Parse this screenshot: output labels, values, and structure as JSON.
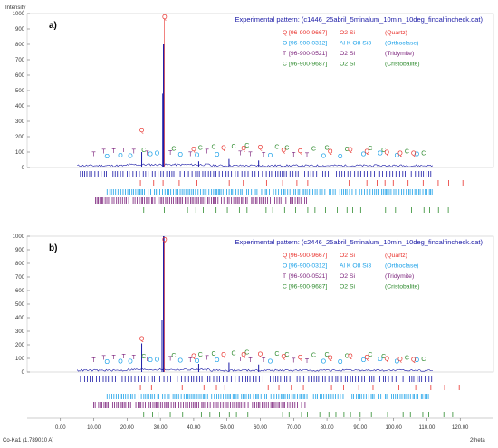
{
  "chart_data": {
    "type": "line",
    "ylabel": "Intensity",
    "xlabel": "2theta",
    "footer": "Co-Ka1 (1.789010 A)",
    "xlim": [
      -10,
      130
    ],
    "ylim": [
      0,
      1000
    ],
    "x_ticks": [
      "0.00",
      "10.00",
      "20.00",
      "30.00",
      "40.00",
      "50.00",
      "60.00",
      "70.00",
      "80.00",
      "90.00",
      "100.00",
      "110.00",
      "120.00"
    ],
    "x_tick_values": [
      0,
      10,
      20,
      30,
      40,
      50,
      60,
      70,
      80,
      90,
      100,
      110,
      120
    ],
    "y_ticks": [
      "0",
      "100",
      "200",
      "300",
      "400",
      "500",
      "600",
      "700",
      "800",
      "900",
      "1000"
    ],
    "y_tick_values": [
      0,
      100,
      200,
      300,
      400,
      500,
      600,
      700,
      800,
      900,
      1000
    ],
    "colors": {
      "quartz": "#e8312c",
      "orthoclase": "#1aa0e8",
      "tridymite": "#7a1f7a",
      "cristobalite": "#2e8b2e",
      "pattern": "#1a1aa6"
    },
    "panels": [
      {
        "label": "a)",
        "pattern_title": "Experimental pattern: (c1446_25abril_5minalum_10min_10deg_fincalfincheck.dat)",
        "main_peak": {
          "x": 31.0,
          "y": 800
        },
        "secondary_peaks": [
          {
            "x": 30.7,
            "y": 480
          },
          {
            "x": 24.4,
            "y": 100
          },
          {
            "x": 50.6,
            "y": 55
          },
          {
            "x": 59.5,
            "y": 45
          },
          {
            "x": 41.5,
            "y": 40
          }
        ],
        "legend": [
          {
            "marker": "Q",
            "code": "[96-900-9667]",
            "formula": "O2 Si",
            "phase": "(Quartz)",
            "color": "#e8312c"
          },
          {
            "marker": "O",
            "code": "[96-900-0312]",
            "formula": "Al K O8 Si3",
            "phase": "(Orthoclase)",
            "color": "#1aa0e8"
          },
          {
            "marker": "T",
            "code": "[96-900-0521]",
            "formula": "O2 Si",
            "phase": "(Tridymite)",
            "color": "#7a1f7a"
          },
          {
            "marker": "C",
            "code": "[96-900-9687]",
            "formula": "O2 Si",
            "phase": "(Cristobalite)",
            "color": "#2e8b2e"
          }
        ]
      },
      {
        "label": "b)",
        "pattern_title": "Experimental pattern: (c2446_25abril_5minalum_10min_10deg_fincalfincheck.dat)",
        "main_peak": {
          "x": 31.0,
          "y": 1000
        },
        "secondary_peaks": [
          {
            "x": 24.4,
            "y": 210
          },
          {
            "x": 30.5,
            "y": 380
          },
          {
            "x": 41.5,
            "y": 60
          },
          {
            "x": 50.6,
            "y": 70
          },
          {
            "x": 59.5,
            "y": 55
          }
        ],
        "legend": [
          {
            "marker": "Q",
            "code": "[96-900-9667]",
            "formula": "O2 Si",
            "phase": "(Quartz)",
            "color": "#e8312c"
          },
          {
            "marker": "O",
            "code": "[96-900-0312]",
            "formula": "Al K O8 Si3",
            "phase": "(Orthoclase)",
            "color": "#1aa0e8"
          },
          {
            "marker": "T",
            "code": "[96-900-0521]",
            "formula": "O2 Si",
            "phase": "(Tridymite)",
            "color": "#7a1f7a"
          },
          {
            "marker": "C",
            "code": "[96-900-9687]",
            "formula": "O2 Si",
            "phase": "(Cristobalite)",
            "color": "#2e8b2e"
          }
        ]
      }
    ]
  }
}
